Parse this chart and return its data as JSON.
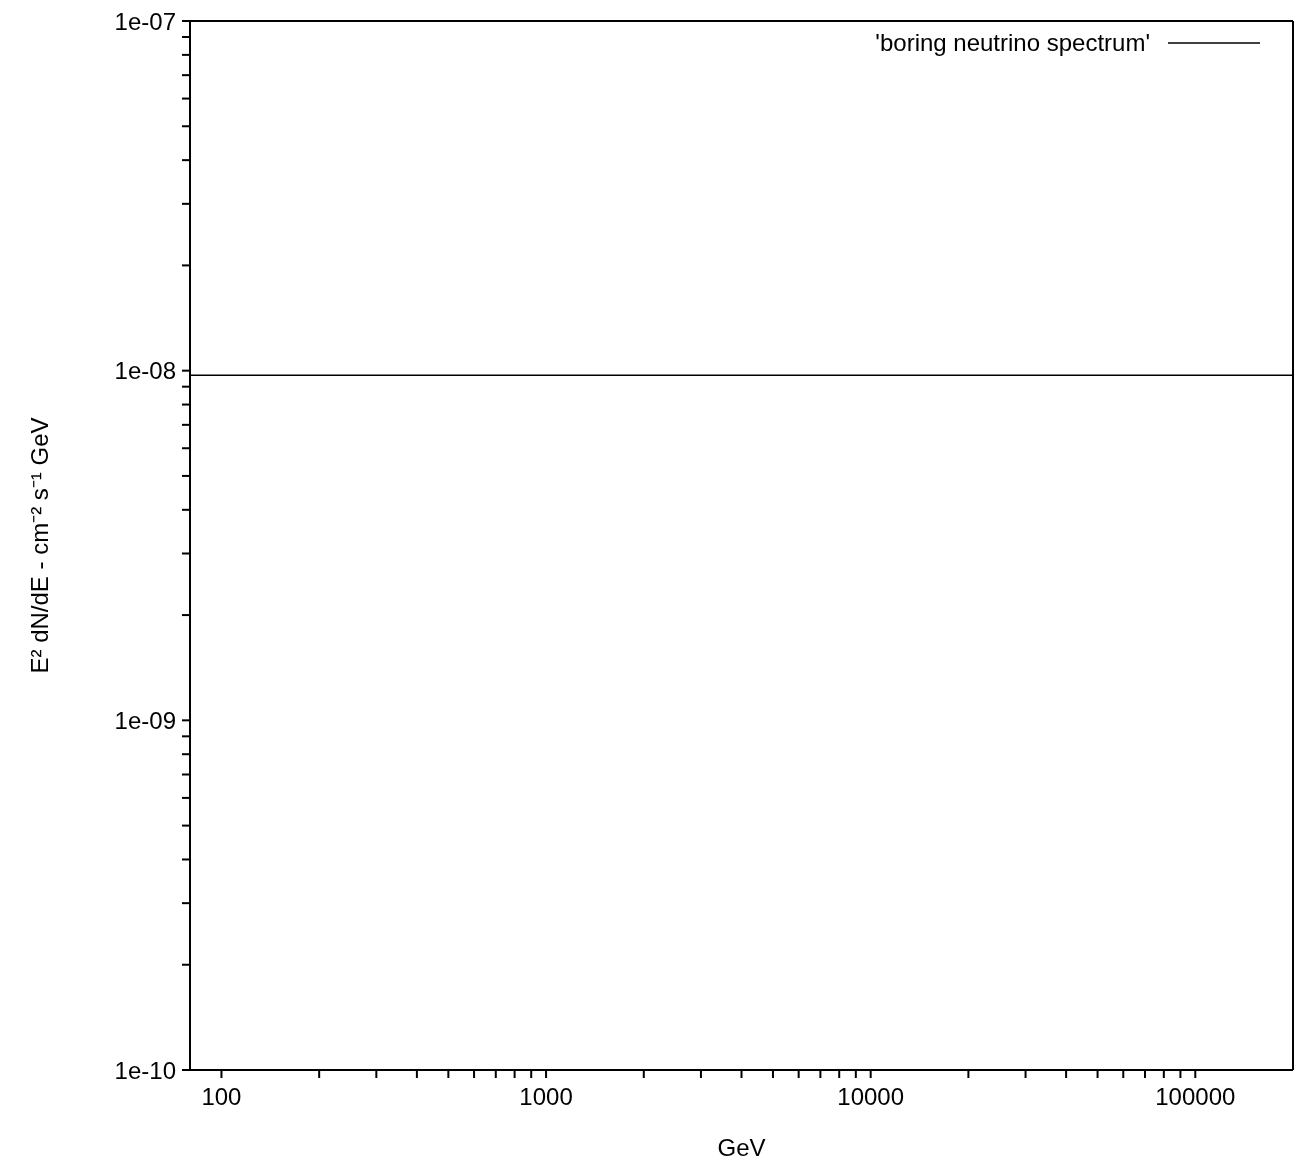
{
  "chart_data": {
    "type": "line",
    "xlabel": "GeV",
    "ylabel": "E² dN/dE - cm⁻² s⁻¹ GeV",
    "log": "xy",
    "grid": false,
    "legend": "top right",
    "marker": "none",
    "line_style": "solid",
    "xlim": [
      80,
      200000
    ],
    "xticks": [
      100,
      {
        "value": 200,
        "label": null
      },
      {
        "value": 300,
        "label": null
      },
      {
        "value": 400,
        "label": null
      },
      {
        "value": 500,
        "label": null
      },
      {
        "value": 600,
        "label": null
      },
      {
        "value": 700,
        "label": null
      },
      {
        "value": 800,
        "label": null
      },
      {
        "value": 900,
        "label": null
      },
      1000,
      {
        "value": 2000,
        "label": null
      },
      {
        "value": 3000,
        "label": null
      },
      {
        "value": 4000,
        "label": null
      },
      {
        "value": 5000,
        "label": null
      },
      {
        "value": 6000,
        "label": null
      },
      {
        "value": 7000,
        "label": null
      },
      {
        "value": 8000,
        "label": null
      },
      {
        "value": 9000,
        "label": null
      },
      10000,
      {
        "value": 20000,
        "label": null
      },
      {
        "value": 30000,
        "label": null
      },
      {
        "value": 40000,
        "label": null
      },
      {
        "value": 50000,
        "label": null
      },
      {
        "value": 60000,
        "label": null
      },
      {
        "value": 70000,
        "label": null
      },
      {
        "value": 80000,
        "label": null
      },
      {
        "value": 90000,
        "label": null
      },
      100000
    ],
    "ylim": [
      1e-10,
      1e-07
    ],
    "yticks": [
      {
        "value": 1e-10,
        "label": "1e-10"
      },
      {
        "value": 2e-10,
        "label": null
      },
      {
        "value": 3e-10,
        "label": null
      },
      {
        "value": 4e-10,
        "label": null
      },
      {
        "value": 5e-10,
        "label": null
      },
      {
        "value": 6e-10,
        "label": null
      },
      {
        "value": 7e-10,
        "label": null
      },
      {
        "value": 8e-10,
        "label": null
      },
      {
        "value": 9e-10,
        "label": null
      },
      {
        "value": 1e-09,
        "label": "1e-09"
      },
      {
        "value": 2e-09,
        "label": null
      },
      {
        "value": 3e-09,
        "label": null
      },
      {
        "value": 4e-09,
        "label": null
      },
      {
        "value": 5e-09,
        "label": null
      },
      {
        "value": 6e-09,
        "label": null
      },
      {
        "value": 7e-09,
        "label": null
      },
      {
        "value": 8e-09,
        "label": null
      },
      {
        "value": 9e-09,
        "label": null
      },
      {
        "value": 1e-08,
        "label": "1e-08"
      },
      {
        "value": 2e-08,
        "label": null
      },
      {
        "value": 3e-08,
        "label": null
      },
      {
        "value": 4e-08,
        "label": null
      },
      {
        "value": 5e-08,
        "label": null
      },
      {
        "value": 6e-08,
        "label": null
      },
      {
        "value": 7e-08,
        "label": null
      },
      {
        "value": 8e-08,
        "label": null
      },
      {
        "value": 9e-08,
        "label": null
      },
      {
        "value": 1e-07,
        "label": "1e-07"
      }
    ],
    "series": [
      {
        "name": "'boring neutrino spectrum'",
        "color": "#000000",
        "x": [
          80,
          200000
        ],
        "values": [
          9.7e-09,
          9.7e-09
        ]
      }
    ]
  }
}
